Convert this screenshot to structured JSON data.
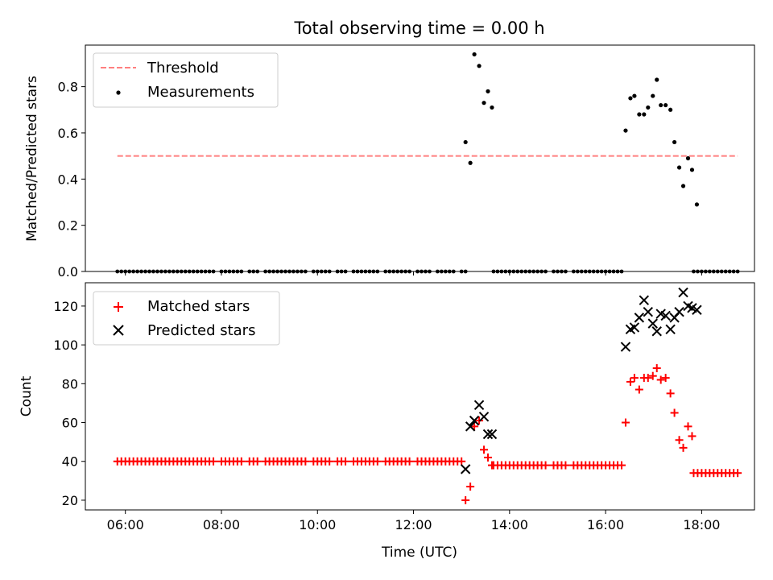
{
  "title": "Total observing time = 0.00 h",
  "xlabel": "Time (UTC)",
  "x_ticks": [
    "06:00",
    "08:00",
    "10:00",
    "12:00",
    "14:00",
    "16:00",
    "18:00"
  ],
  "colors": {
    "threshold": "#ff7f7f",
    "measurements": "#000000",
    "matched": "#ff0000",
    "predicted": "#000000"
  },
  "chart_data": [
    {
      "type": "scatter",
      "ylabel": "Matched/Predicted stars",
      "xlim": [
        "05:10",
        "19:06"
      ],
      "ylim": [
        0,
        0.98
      ],
      "y_ticks": [
        "0.0",
        "0.2",
        "0.4",
        "0.6",
        "0.8"
      ],
      "y_tick_values": [
        0,
        0.2,
        0.4,
        0.6,
        0.8
      ],
      "legend": {
        "position": "top-left",
        "entries": [
          "Threshold",
          "Measurements"
        ]
      },
      "threshold": {
        "name": "Threshold",
        "value": 0.5,
        "x_range": [
          "05:50",
          "18:45"
        ]
      },
      "series": [
        {
          "name": "Measurements",
          "zero_runs": [
            {
              "start": "05:50",
              "end": "13:05",
              "step_min": 5,
              "gaps": [
                "07:55",
                "08:30",
                "08:50",
                "09:50",
                "10:20",
                "10:40",
                "11:20",
                "12:00",
                "12:25",
                "12:55"
              ]
            },
            {
              "start": "13:40",
              "end": "16:20",
              "step_min": 5,
              "gaps": [
                "14:50",
                "15:15"
              ]
            },
            {
              "start": "17:50",
              "end": "18:45",
              "step_min": 5,
              "gaps": []
            }
          ],
          "points": [
            [
              "13:05",
              0.56
            ],
            [
              "13:11",
              0.47
            ],
            [
              "13:16",
              0.94
            ],
            [
              "13:22",
              0.89
            ],
            [
              "13:28",
              0.73
            ],
            [
              "13:33",
              0.78
            ],
            [
              "13:38",
              0.71
            ],
            [
              "16:25",
              0.61
            ],
            [
              "16:31",
              0.75
            ],
            [
              "16:36",
              0.76
            ],
            [
              "16:42",
              0.68
            ],
            [
              "16:48",
              0.68
            ],
            [
              "16:53",
              0.71
            ],
            [
              "16:59",
              0.76
            ],
            [
              "17:04",
              0.83
            ],
            [
              "17:09",
              0.72
            ],
            [
              "17:15",
              0.72
            ],
            [
              "17:21",
              0.7
            ],
            [
              "17:26",
              0.56
            ],
            [
              "17:32",
              0.45
            ],
            [
              "17:37",
              0.37
            ],
            [
              "17:43",
              0.49
            ],
            [
              "17:48",
              0.44
            ],
            [
              "17:54",
              0.29
            ]
          ]
        }
      ]
    },
    {
      "type": "scatter",
      "ylabel": "Count",
      "xlim": [
        "05:10",
        "19:06"
      ],
      "ylim": [
        15,
        132
      ],
      "y_ticks": [
        "20",
        "40",
        "60",
        "80",
        "100",
        "120"
      ],
      "y_tick_values": [
        20,
        40,
        60,
        80,
        100,
        120
      ],
      "legend": {
        "position": "top-left",
        "entries": [
          "Matched stars",
          "Predicted stars"
        ]
      },
      "series": [
        {
          "name": "Matched stars",
          "marker": "+",
          "constant_runs": [
            {
              "start": "05:50",
              "end": "13:00",
              "step_min": 5,
              "value": 40,
              "gaps": [
                "07:55",
                "08:30",
                "08:50",
                "09:50",
                "10:20",
                "10:40",
                "11:20",
                "12:00"
              ]
            },
            {
              "start": "13:40",
              "end": "16:20",
              "step_min": 5,
              "value": 38,
              "gaps": [
                "14:50",
                "15:15"
              ]
            },
            {
              "start": "17:50",
              "end": "18:45",
              "step_min": 5,
              "value": 34,
              "gaps": []
            }
          ],
          "points": [
            [
              "13:05",
              20
            ],
            [
              "13:11",
              27
            ],
            [
              "13:16",
              58
            ],
            [
              "13:22",
              61
            ],
            [
              "13:28",
              46
            ],
            [
              "13:33",
              42
            ],
            [
              "13:38",
              38
            ],
            [
              "16:25",
              60
            ],
            [
              "16:31",
              81
            ],
            [
              "16:36",
              83
            ],
            [
              "16:42",
              77
            ],
            [
              "16:48",
              83
            ],
            [
              "16:53",
              83
            ],
            [
              "16:59",
              84
            ],
            [
              "17:04",
              88
            ],
            [
              "17:09",
              82
            ],
            [
              "17:15",
              83
            ],
            [
              "17:21",
              75
            ],
            [
              "17:26",
              65
            ],
            [
              "17:32",
              51
            ],
            [
              "17:37",
              47
            ],
            [
              "17:43",
              58
            ],
            [
              "17:48",
              53
            ]
          ]
        },
        {
          "name": "Predicted stars",
          "marker": "x",
          "points": [
            [
              "13:05",
              36
            ],
            [
              "13:11",
              58
            ],
            [
              "13:16",
              61
            ],
            [
              "13:22",
              69
            ],
            [
              "13:28",
              63
            ],
            [
              "13:33",
              54
            ],
            [
              "13:38",
              54
            ],
            [
              "16:25",
              99
            ],
            [
              "16:31",
              108
            ],
            [
              "16:36",
              109
            ],
            [
              "16:42",
              114
            ],
            [
              "16:48",
              123
            ],
            [
              "16:53",
              117
            ],
            [
              "16:59",
              111
            ],
            [
              "17:04",
              107
            ],
            [
              "17:09",
              116
            ],
            [
              "17:15",
              115
            ],
            [
              "17:21",
              108
            ],
            [
              "17:26",
              114
            ],
            [
              "17:32",
              117
            ],
            [
              "17:37",
              127
            ],
            [
              "17:43",
              120
            ],
            [
              "17:48",
              119
            ],
            [
              "17:54",
              118
            ]
          ]
        }
      ]
    }
  ]
}
